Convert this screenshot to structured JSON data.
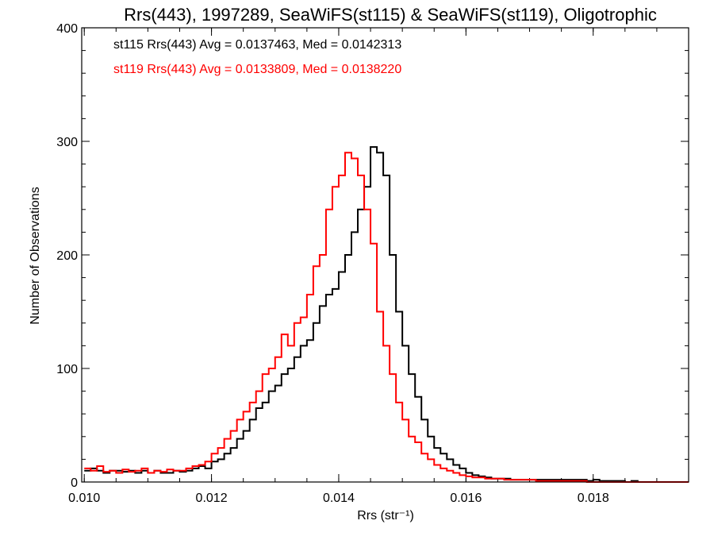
{
  "chart_data": {
    "type": "line",
    "style": "histogram-steps",
    "title": "Rrs(443), 1997289, SeaWiFS(st115) & SeaWiFS(st119), Oligotrophic",
    "xlabel": "Rrs (str⁻¹)",
    "ylabel": "Number of Observations",
    "xlim": [
      0.00996,
      0.0195
    ],
    "ylim": [
      0,
      400
    ],
    "xticks": [
      "0.010",
      "0.012",
      "0.014",
      "0.016",
      "0.018"
    ],
    "xtick_values": [
      0.01,
      0.012,
      0.014,
      0.016,
      0.018
    ],
    "yticks": [
      "0",
      "100",
      "200",
      "300",
      "400"
    ],
    "ytick_values": [
      0,
      100,
      200,
      300,
      400
    ],
    "bin_start": 0.01,
    "bin_width": 0.0001,
    "legend_position": "top-left",
    "series": [
      {
        "name": "st115",
        "legend": "st115 Rrs(443) Avg = 0.0137463, Med = 0.0142313",
        "color": "#000000",
        "values": [
          10,
          12,
          10,
          8,
          10,
          10,
          9,
          10,
          8,
          10,
          8,
          10,
          8,
          8,
          10,
          9,
          10,
          12,
          14,
          12,
          18,
          20,
          25,
          30,
          38,
          45,
          55,
          65,
          70,
          80,
          85,
          95,
          100,
          110,
          120,
          125,
          140,
          155,
          165,
          170,
          185,
          200,
          220,
          240,
          260,
          295,
          290,
          270,
          200,
          150,
          120,
          95,
          75,
          55,
          40,
          30,
          25,
          20,
          15,
          12,
          8,
          6,
          5,
          4,
          3,
          3,
          3,
          2,
          2,
          2,
          2,
          2,
          2,
          2,
          2,
          2,
          2,
          2,
          2,
          1,
          2,
          1,
          1,
          1,
          1,
          0,
          1,
          0,
          0,
          0,
          0,
          0,
          0,
          0,
          0
        ]
      },
      {
        "name": "st119",
        "legend": "st119 Rrs(443) Avg = 0.0133809, Med = 0.0138220",
        "color": "#ff0000",
        "values": [
          12,
          10,
          14,
          9,
          10,
          8,
          11,
          9,
          10,
          12,
          8,
          10,
          9,
          11,
          10,
          10,
          12,
          14,
          15,
          18,
          25,
          30,
          38,
          45,
          55,
          62,
          70,
          80,
          95,
          100,
          110,
          130,
          120,
          140,
          145,
          165,
          190,
          200,
          240,
          260,
          270,
          290,
          285,
          270,
          240,
          210,
          150,
          120,
          95,
          70,
          55,
          40,
          35,
          25,
          20,
          15,
          12,
          10,
          8,
          6,
          5,
          4,
          4,
          3,
          3,
          3,
          2,
          2,
          2,
          2,
          2,
          1,
          1,
          1,
          1,
          1,
          1,
          1,
          1,
          0,
          0,
          0,
          0,
          0,
          0,
          0,
          0,
          0,
          0,
          0,
          0,
          0,
          0,
          0,
          0
        ]
      }
    ]
  }
}
